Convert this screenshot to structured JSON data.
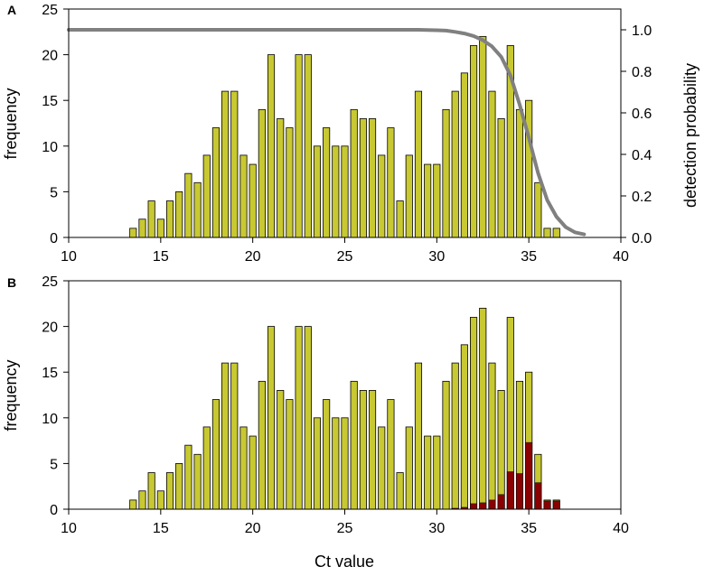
{
  "chart_data": [
    {
      "panel": "A",
      "type": "bar",
      "xlabel": "",
      "ylabel": "frequency",
      "y2label": "detection probability",
      "xlim": [
        10,
        40
      ],
      "ylim": [
        0,
        25
      ],
      "y2lim": [
        0,
        1.1
      ],
      "x_ticks": [
        10,
        15,
        20,
        25,
        30,
        35,
        40
      ],
      "y_ticks": [
        0,
        5,
        10,
        15,
        20,
        25
      ],
      "y2_ticks": [
        "0.0",
        "0.2",
        "0.4",
        "0.6",
        "0.8",
        "1.0"
      ],
      "bar_color": "#c8c832",
      "curve_color": "#808080",
      "x": [
        13.5,
        14,
        14.5,
        15,
        15.5,
        16,
        16.5,
        17,
        17.5,
        18,
        18.5,
        19,
        19.5,
        20,
        20.5,
        21,
        21.5,
        22,
        22.5,
        23,
        23.5,
        24,
        24.5,
        25,
        25.5,
        26,
        26.5,
        27,
        27.5,
        28,
        28.5,
        29,
        29.5,
        30,
        30.5,
        31,
        31.5,
        32,
        32.5,
        33,
        33.5,
        34,
        34.5,
        35,
        35.5,
        36,
        36.5
      ],
      "values": [
        1,
        2,
        4,
        2,
        4,
        5,
        7,
        6,
        9,
        12,
        16,
        16,
        9,
        8,
        14,
        20,
        13,
        12,
        20,
        20,
        10,
        12,
        10,
        10,
        14,
        13,
        13,
        9,
        12,
        4,
        9,
        16,
        8,
        8,
        14,
        16,
        18,
        21,
        22,
        16,
        13,
        21,
        14,
        15,
        6,
        1,
        1
      ],
      "curve": {
        "name": "detection probability",
        "x": [
          10,
          12,
          14,
          16,
          18,
          20,
          22,
          24,
          26,
          28,
          29,
          30,
          30.5,
          31,
          31.5,
          32,
          32.5,
          33,
          33.5,
          34,
          34.5,
          35,
          35.5,
          36,
          36.5,
          37,
          37.5,
          38
        ],
        "y": [
          1.0,
          1.0,
          1.0,
          1.0,
          1.0,
          1.0,
          1.0,
          1.0,
          1.0,
          1.0,
          1.0,
          0.998,
          0.996,
          0.99,
          0.982,
          0.97,
          0.95,
          0.92,
          0.87,
          0.78,
          0.64,
          0.48,
          0.31,
          0.18,
          0.1,
          0.05,
          0.025,
          0.015
        ]
      }
    },
    {
      "panel": "B",
      "type": "bar",
      "xlabel": "Ct value",
      "ylabel": "frequency",
      "xlim": [
        10,
        40
      ],
      "ylim": [
        0,
        25
      ],
      "x_ticks": [
        10,
        15,
        20,
        25,
        30,
        35,
        40
      ],
      "y_ticks": [
        0,
        5,
        10,
        15,
        20,
        25
      ],
      "bar_color": "#c8c832",
      "overlay_color": "#8b0000",
      "x": [
        13.5,
        14,
        14.5,
        15,
        15.5,
        16,
        16.5,
        17,
        17.5,
        18,
        18.5,
        19,
        19.5,
        20,
        20.5,
        21,
        21.5,
        22,
        22.5,
        23,
        23.5,
        24,
        24.5,
        25,
        25.5,
        26,
        26.5,
        27,
        27.5,
        28,
        28.5,
        29,
        29.5,
        30,
        30.5,
        31,
        31.5,
        32,
        32.5,
        33,
        33.5,
        34,
        34.5,
        35,
        35.5,
        36,
        36.5
      ],
      "values": [
        1,
        2,
        4,
        2,
        4,
        5,
        7,
        6,
        9,
        12,
        16,
        16,
        9,
        8,
        14,
        20,
        13,
        12,
        20,
        20,
        10,
        12,
        10,
        10,
        14,
        13,
        13,
        9,
        12,
        4,
        9,
        16,
        8,
        8,
        14,
        16,
        18,
        21,
        22,
        16,
        13,
        21,
        14,
        15,
        6,
        1,
        1
      ],
      "overlay_values": [
        0,
        0,
        0,
        0,
        0,
        0,
        0,
        0,
        0,
        0,
        0,
        0,
        0,
        0,
        0,
        0,
        0,
        0,
        0,
        0,
        0,
        0,
        0,
        0,
        0,
        0,
        0,
        0,
        0,
        0,
        0,
        0,
        0,
        0,
        0,
        0.1,
        0.2,
        0.6,
        0.7,
        1,
        1.6,
        4.1,
        3.9,
        7.3,
        2.9,
        0.9,
        0.9
      ]
    }
  ]
}
